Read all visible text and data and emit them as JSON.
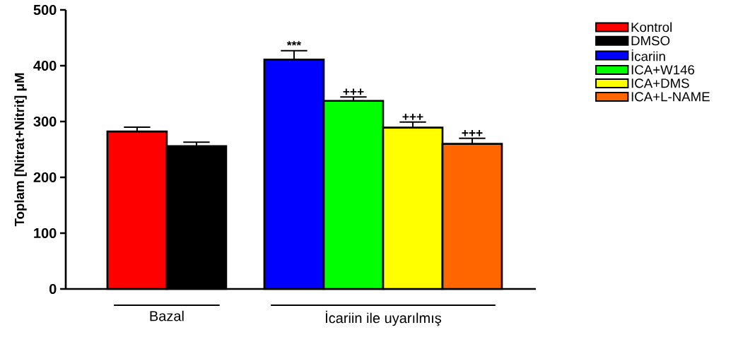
{
  "chart_data": {
    "type": "bar",
    "ylabel": "Toplam [Nitrat+Nitrit] μM",
    "categories": [
      "Bazal",
      "İcariin ile uyarılmış"
    ],
    "series": [
      {
        "name": "Kontrol",
        "color": "#ff0000",
        "values": [
          282,
          null
        ],
        "errors": [
          8,
          null
        ]
      },
      {
        "name": "DMSO",
        "color": "#000000",
        "values": [
          256,
          null
        ],
        "errors": [
          7,
          null
        ]
      },
      {
        "name": "İcariin",
        "color": "#0000ff",
        "values": [
          null,
          411
        ],
        "errors": [
          null,
          16
        ]
      },
      {
        "name": "ICA+W146",
        "color": "#00ff00",
        "values": [
          null,
          337
        ],
        "errors": [
          null,
          7
        ]
      },
      {
        "name": "ICA+DMS",
        "color": "#ffff00",
        "values": [
          null,
          289
        ],
        "errors": [
          null,
          10
        ]
      },
      {
        "name": "ICA+L-NAME",
        "color": "#ff6600",
        "values": [
          null,
          260
        ],
        "errors": [
          null,
          10
        ]
      }
    ],
    "ylim": [
      0,
      500
    ],
    "yticks": [
      0,
      100,
      200,
      300,
      400,
      500
    ],
    "legend": "right",
    "annotations": [
      "***",
      "+++",
      "+++",
      "+++"
    ]
  }
}
